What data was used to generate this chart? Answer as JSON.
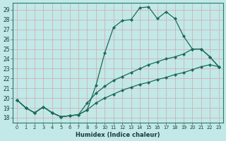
{
  "xlabel": "Humidex (Indice chaleur)",
  "bg_color": "#c2e8e8",
  "grid_color": "#d4a8a8",
  "line_color": "#1a6b5a",
  "xlim": [
    -0.5,
    23.5
  ],
  "ylim": [
    17.5,
    29.7
  ],
  "xticks": [
    0,
    1,
    2,
    3,
    4,
    5,
    6,
    7,
    8,
    9,
    10,
    11,
    12,
    13,
    14,
    15,
    16,
    17,
    18,
    19,
    20,
    21,
    22,
    23
  ],
  "yticks": [
    18,
    19,
    20,
    21,
    22,
    23,
    24,
    25,
    26,
    27,
    28,
    29
  ],
  "line1_x": [
    0,
    1,
    2,
    3,
    4,
    5,
    6,
    7,
    8,
    9,
    10,
    11,
    12,
    13,
    14,
    15,
    16,
    17,
    18,
    19,
    20,
    21,
    22,
    23
  ],
  "line1_y": [
    19.8,
    19.0,
    18.5,
    19.1,
    18.5,
    18.1,
    18.2,
    18.3,
    18.8,
    21.3,
    24.6,
    27.2,
    27.9,
    28.0,
    29.2,
    29.3,
    28.1,
    28.8,
    28.1,
    26.3,
    25.0,
    25.0,
    24.2,
    23.2
  ],
  "line2_x": [
    0,
    1,
    2,
    3,
    4,
    5,
    6,
    7,
    8,
    9,
    10,
    11,
    12,
    13,
    14,
    15,
    16,
    17,
    18,
    19,
    20,
    21,
    22,
    23
  ],
  "line2_y": [
    19.8,
    19.0,
    18.5,
    19.1,
    18.5,
    18.1,
    18.2,
    18.3,
    19.5,
    20.5,
    21.2,
    21.8,
    22.2,
    22.6,
    23.0,
    23.4,
    23.7,
    24.0,
    24.2,
    24.5,
    25.0,
    25.0,
    24.2,
    23.2
  ],
  "line3_x": [
    0,
    1,
    2,
    3,
    4,
    5,
    6,
    7,
    8,
    9,
    10,
    11,
    12,
    13,
    14,
    15,
    16,
    17,
    18,
    19,
    20,
    21,
    22,
    23
  ],
  "line3_y": [
    19.8,
    19.0,
    18.5,
    19.1,
    18.5,
    18.1,
    18.2,
    18.3,
    18.8,
    19.5,
    20.0,
    20.4,
    20.8,
    21.1,
    21.4,
    21.6,
    21.9,
    22.1,
    22.4,
    22.6,
    22.9,
    23.2,
    23.4,
    23.2
  ]
}
